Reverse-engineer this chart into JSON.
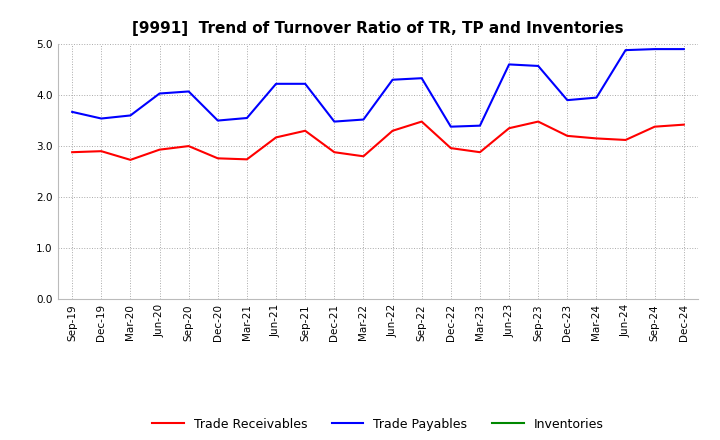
{
  "title": "[9991]  Trend of Turnover Ratio of TR, TP and Inventories",
  "ylim": [
    0.0,
    5.0
  ],
  "yticks": [
    0.0,
    1.0,
    2.0,
    3.0,
    4.0,
    5.0
  ],
  "x_labels": [
    "Sep-19",
    "Dec-19",
    "Mar-20",
    "Jun-20",
    "Sep-20",
    "Dec-20",
    "Mar-21",
    "Jun-21",
    "Sep-21",
    "Dec-21",
    "Mar-22",
    "Jun-22",
    "Sep-22",
    "Dec-22",
    "Mar-23",
    "Jun-23",
    "Sep-23",
    "Dec-23",
    "Mar-24",
    "Jun-24",
    "Sep-24",
    "Dec-24"
  ],
  "trade_receivables": [
    2.88,
    2.9,
    2.73,
    2.93,
    3.0,
    2.76,
    2.74,
    3.17,
    3.3,
    2.88,
    2.8,
    3.3,
    3.48,
    2.96,
    2.88,
    3.35,
    3.48,
    3.2,
    3.15,
    3.12,
    3.38,
    3.42
  ],
  "trade_payables": [
    3.67,
    3.54,
    3.6,
    4.03,
    4.07,
    3.5,
    3.55,
    4.22,
    4.22,
    3.48,
    3.52,
    4.3,
    4.33,
    3.38,
    3.4,
    4.6,
    4.57,
    3.9,
    3.95,
    4.88,
    4.9,
    4.9
  ],
  "inventories": [
    null,
    null,
    null,
    null,
    null,
    null,
    null,
    null,
    null,
    null,
    null,
    null,
    null,
    null,
    null,
    null,
    null,
    null,
    null,
    null,
    null,
    null
  ],
  "tr_color": "#ff0000",
  "tp_color": "#0000ff",
  "inv_color": "#008800",
  "bg_color": "#ffffff",
  "grid_color": "#aaaaaa",
  "title_fontsize": 11,
  "legend_fontsize": 9,
  "tick_fontsize": 7.5
}
